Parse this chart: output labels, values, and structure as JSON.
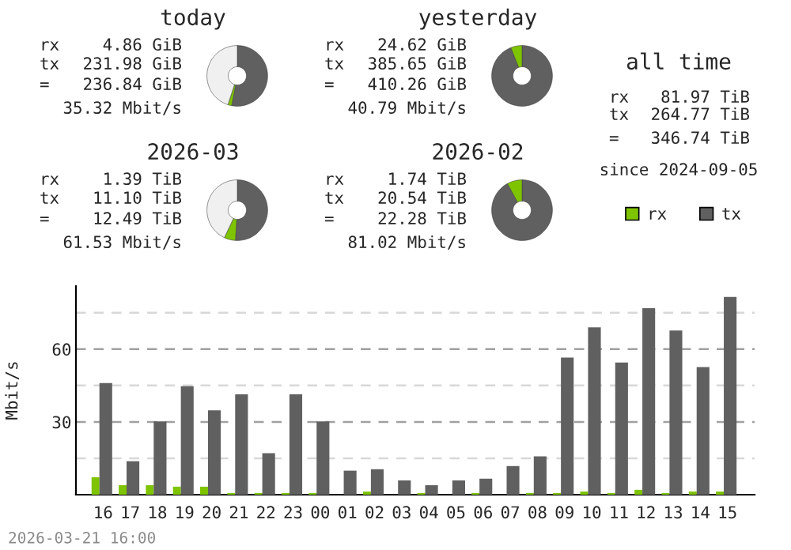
{
  "chart_data": [
    {
      "type": "donut",
      "title": "today",
      "categories": [
        null,
        null,
        null
      ],
      "values": [
        53,
        2,
        45
      ],
      "colors": [
        "#606060",
        "#7fc400",
        "#f0f0f0"
      ],
      "annotations": [
        "rx",
        "4.86 GiB",
        "tx",
        "231.98 GiB",
        "=",
        "236.84 GiB",
        "35.32 Mbit/s"
      ]
    },
    {
      "type": "donut",
      "title": "yesterday",
      "categories": [
        null,
        null
      ],
      "values": [
        94,
        6
      ],
      "colors": [
        "#606060",
        "#7fc400"
      ],
      "annotations": [
        "rx",
        "24.62 GiB",
        "tx",
        "385.65 GiB",
        "=",
        "410.26 GiB",
        "40.79 Mbit/s"
      ]
    },
    {
      "type": "donut",
      "title": "2026-03",
      "categories": [
        null,
        null,
        null
      ],
      "values": [
        51,
        6,
        43
      ],
      "colors": [
        "#606060",
        "#7fc400",
        "#f0f0f0"
      ],
      "annotations": [
        "rx",
        "1.39 TiB",
        "tx",
        "11.10 TiB",
        "=",
        "12.49 TiB",
        "61.53 Mbit/s"
      ]
    },
    {
      "type": "donut",
      "title": "2026-02",
      "categories": [
        null,
        null
      ],
      "values": [
        92,
        8
      ],
      "colors": [
        "#606060",
        "#7fc400"
      ],
      "annotations": [
        "rx",
        "1.74 TiB",
        "tx",
        "20.54 TiB",
        "=",
        "22.28 TiB",
        "81.02 Mbit/s"
      ]
    },
    {
      "type": "other",
      "title": "all time",
      "annotations": [
        "rx",
        "81.97 TiB",
        "tx",
        "264.77 TiB",
        "=",
        "346.74 TiB",
        "since 2024-09-05"
      ]
    },
    {
      "type": "bar",
      "ylabel": "Mbit/s",
      "categories": [
        "16",
        "17",
        "18",
        "19",
        "20",
        "21",
        "22",
        "23",
        "00",
        "01",
        "02",
        "03",
        "04",
        "05",
        "06",
        "07",
        "08",
        "09",
        "10",
        "11",
        "12",
        "13",
        "14",
        "15"
      ],
      "series": [
        {
          "name": "rx",
          "color": "#7fc400",
          "values": [
            7.2,
            3.9,
            3.9,
            3.3,
            3.3,
            0.7,
            0.7,
            0.7,
            0.7,
            0,
            1.3,
            0,
            0.7,
            0,
            0.7,
            0,
            0.7,
            0.7,
            1.3,
            0.7,
            2.0,
            0.7,
            1.3,
            1.3
          ]
        },
        {
          "name": "tx",
          "color": "#606060",
          "values": [
            46.0,
            13.8,
            30.2,
            44.7,
            34.8,
            41.4,
            17.1,
            41.4,
            30.2,
            9.9,
            10.5,
            5.9,
            3.9,
            5.9,
            6.6,
            11.8,
            15.8,
            56.5,
            69.0,
            54.5,
            76.9,
            67.7,
            52.6,
            81.5
          ]
        }
      ],
      "ylim": [
        0,
        86
      ],
      "yticks": [
        {
          "value": 15,
          "label": null
        },
        30,
        {
          "value": 45,
          "label": null
        },
        60,
        {
          "value": 75,
          "label": null
        }
      ],
      "grid": "y",
      "legend": "top right",
      "annotations": [
        "2026-03-21 16:00"
      ]
    }
  ]
}
